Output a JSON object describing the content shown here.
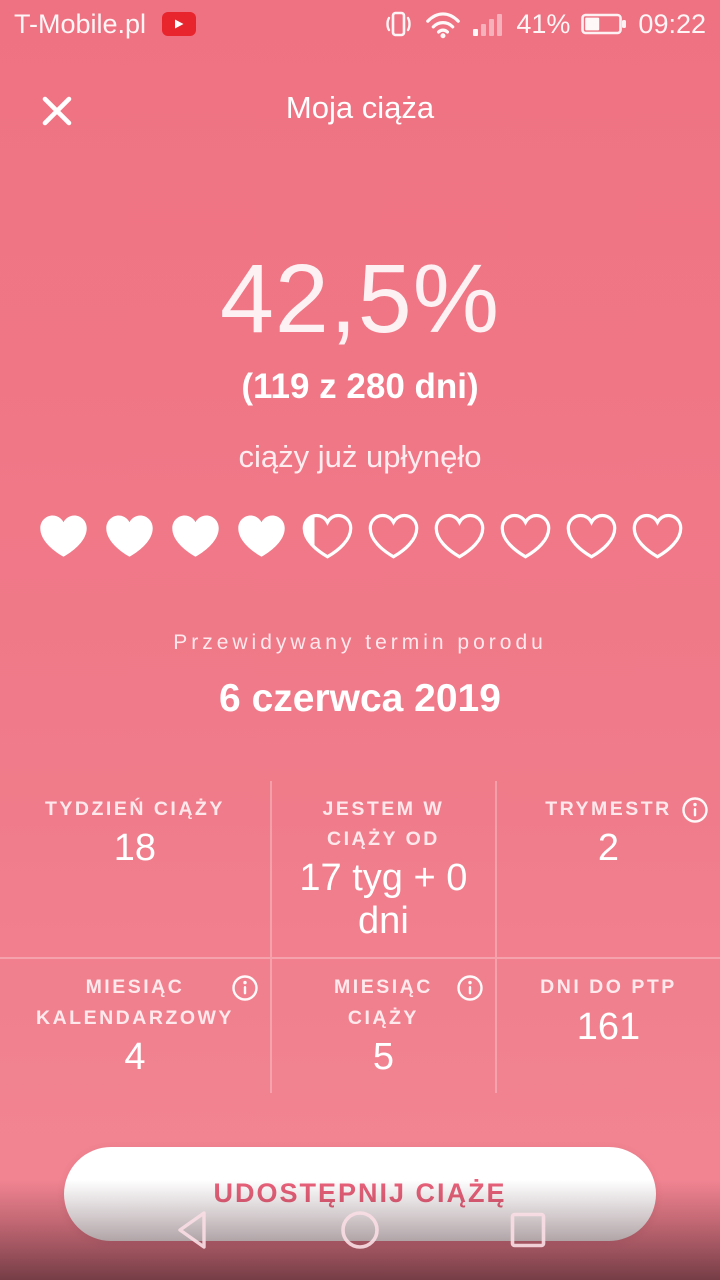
{
  "colors": {
    "background_top": "#ef7282",
    "background_bottom": "#f28693",
    "accent_pink": "#e9617a",
    "youtube_red": "#e8242c",
    "divider": "rgba(255,255,255,0.28)"
  },
  "status_bar": {
    "carrier": "T-Mobile.pl",
    "battery_percent": "41%",
    "time": "09:22"
  },
  "header": {
    "title": "Moja ciąża"
  },
  "progress": {
    "percent": "42,5%",
    "days_info": "(119 z 280 dni)",
    "caption": "ciąży już upłynęło",
    "hearts": [
      "filled",
      "filled",
      "filled",
      "filled",
      "partial",
      "outline",
      "outline",
      "outline",
      "outline",
      "outline"
    ]
  },
  "due": {
    "label": "Przewidywany termin porodu",
    "date": "6 czerwca 2019"
  },
  "stats": {
    "items": [
      {
        "label": "TYDZIEŃ CIĄŻY",
        "value": "18",
        "info": false
      },
      {
        "label": "JESTEM W CIĄŻY OD",
        "value": "17 tyg + 0 dni",
        "info": false
      },
      {
        "label": "TRYMESTR",
        "value": "2",
        "info": true
      },
      {
        "label": "MIESIĄC KALENDARZOWY",
        "value": "4",
        "info": true
      },
      {
        "label": "MIESIĄC CIĄŻY",
        "value": "5",
        "info": true
      },
      {
        "label": "DNI DO PTP",
        "value": "161",
        "info": false
      }
    ]
  },
  "share_button": {
    "label": "UDOSTĘPNIJ CIĄŻĘ"
  }
}
